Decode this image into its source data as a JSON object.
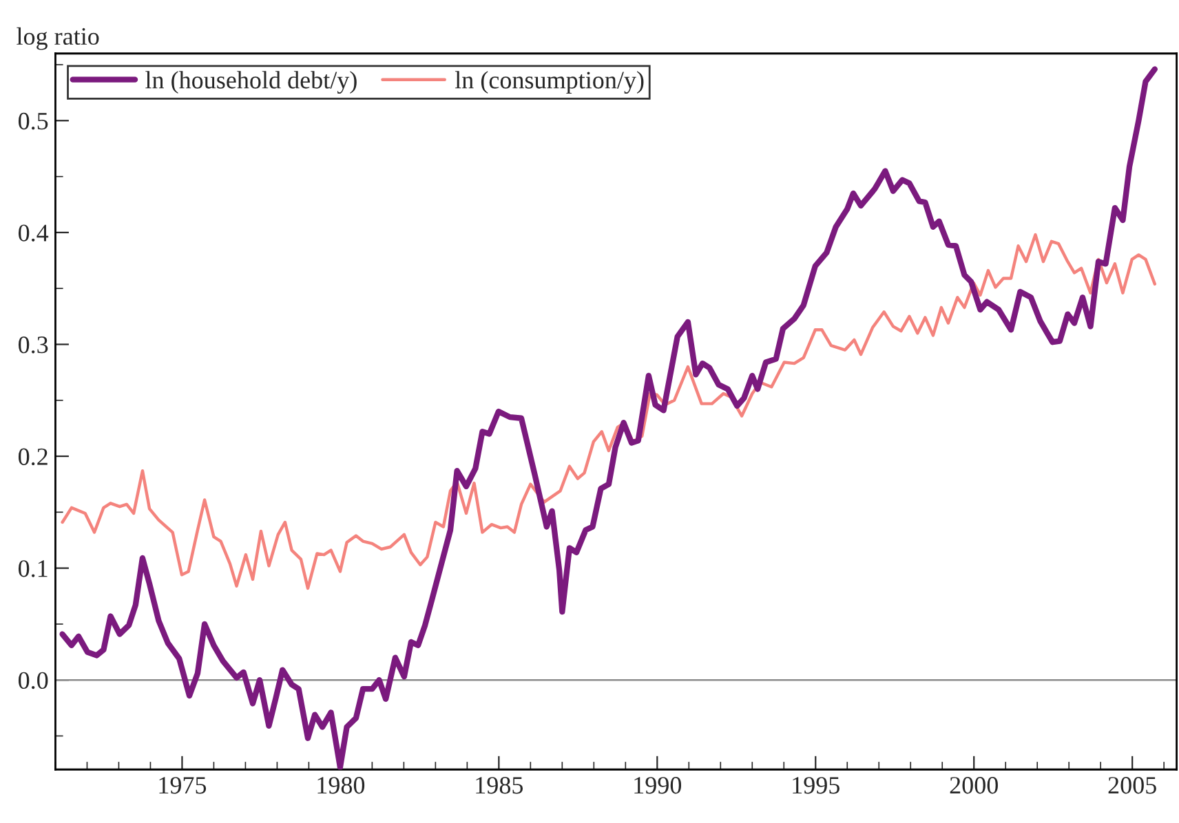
{
  "chart_data": {
    "type": "line",
    "ylabel": "log ratio",
    "xlim": [
      1971,
      2006.4
    ],
    "xticks": [
      {
        "value": 1971,
        "label": null
      },
      {
        "value": 1972,
        "label": null
      },
      {
        "value": 1973,
        "label": null
      },
      {
        "value": 1974,
        "label": null
      },
      1975,
      {
        "value": 1976,
        "label": null
      },
      {
        "value": 1977,
        "label": null
      },
      {
        "value": 1978,
        "label": null
      },
      {
        "value": 1979,
        "label": null
      },
      1980,
      {
        "value": 1981,
        "label": null
      },
      {
        "value": 1982,
        "label": null
      },
      {
        "value": 1983,
        "label": null
      },
      {
        "value": 1984,
        "label": null
      },
      1985,
      {
        "value": 1986,
        "label": null
      },
      {
        "value": 1987,
        "label": null
      },
      {
        "value": 1988,
        "label": null
      },
      {
        "value": 1989,
        "label": null
      },
      1990,
      {
        "value": 1991,
        "label": null
      },
      {
        "value": 1992,
        "label": null
      },
      {
        "value": 1993,
        "label": null
      },
      {
        "value": 1994,
        "label": null
      },
      1995,
      {
        "value": 1996,
        "label": null
      },
      {
        "value": 1997,
        "label": null
      },
      {
        "value": 1998,
        "label": null
      },
      {
        "value": 1999,
        "label": null
      },
      2000,
      {
        "value": 2001,
        "label": null
      },
      {
        "value": 2002,
        "label": null
      },
      {
        "value": 2003,
        "label": null
      },
      {
        "value": 2004,
        "label": null
      },
      2005,
      {
        "value": 2006,
        "label": null
      }
    ],
    "ylim": [
      -0.08,
      0.56
    ],
    "yticks": [
      {
        "value": -0.05,
        "label": null
      },
      {
        "value": 0,
        "label": "0.0"
      },
      {
        "value": 0.05,
        "label": null
      },
      0.1,
      {
        "value": 0.15,
        "label": null
      },
      0.2,
      {
        "value": 0.25,
        "label": null
      },
      0.3,
      {
        "value": 0.35,
        "label": null
      },
      0.4,
      {
        "value": 0.45,
        "label": null
      },
      0.5,
      {
        "value": 0.55,
        "label": null
      }
    ],
    "ref_lines": [
      {
        "axis": "y",
        "value": 0,
        "color": "#8c8c8c"
      }
    ],
    "grid": false,
    "legend": "top left",
    "line_style": "solid",
    "marker": "none",
    "series": [
      {
        "name": "ln (household debt/y)",
        "color": "#7b1a7e",
        "x": [
          1971.22,
          1971.51,
          1971.73,
          1972.01,
          1972.3,
          1972.52,
          1972.74,
          1973.03,
          1973.32,
          1973.53,
          1973.75,
          1973.97,
          1974.26,
          1974.55,
          1974.91,
          1975.23,
          1975.49,
          1975.71,
          1976.0,
          1976.29,
          1976.72,
          1976.94,
          1977.23,
          1977.45,
          1977.74,
          1977.96,
          1978.17,
          1978.46,
          1978.68,
          1978.97,
          1979.19,
          1979.43,
          1979.7,
          1979.99,
          1980.2,
          1980.49,
          1980.71,
          1981.0,
          1981.22,
          1981.43,
          1981.73,
          1982.01,
          1982.23,
          1982.45,
          1982.67,
          1982.88,
          1983.17,
          1983.47,
          1983.68,
          1983.97,
          1984.26,
          1984.48,
          1984.7,
          1984.99,
          1985.35,
          1985.71,
          1986.14,
          1986.51,
          1986.68,
          1986.91,
          1987.0,
          1987.23,
          1987.45,
          1987.74,
          1987.96,
          1988.22,
          1988.47,
          1988.68,
          1988.94,
          1989.19,
          1989.4,
          1989.73,
          1989.94,
          1990.2,
          1990.64,
          1990.97,
          1991.22,
          1991.43,
          1991.65,
          1991.94,
          1992.23,
          1992.52,
          1992.74,
          1993.0,
          1993.17,
          1993.43,
          1993.75,
          1993.97,
          1994.33,
          1994.62,
          1994.99,
          1995.35,
          1995.64,
          1996.0,
          1996.19,
          1996.43,
          1996.87,
          1997.2,
          1997.45,
          1997.74,
          1997.96,
          1998.27,
          1998.46,
          1998.71,
          1998.9,
          1999.19,
          1999.43,
          1999.7,
          1999.91,
          2000.2,
          2000.41,
          2000.78,
          2001.17,
          2001.46,
          2001.8,
          2002.09,
          2002.48,
          2002.71,
          2002.96,
          2003.17,
          2003.43,
          2003.68,
          2003.93,
          2004.16,
          2004.45,
          2004.7,
          2004.91,
          2005.2,
          2005.42,
          2005.71
        ],
        "values": [
          0.041,
          0.031,
          0.039,
          0.025,
          0.022,
          0.027,
          0.057,
          0.041,
          0.049,
          0.067,
          0.109,
          0.086,
          0.053,
          0.033,
          0.019,
          -0.014,
          0.006,
          0.05,
          0.031,
          0.017,
          0.002,
          0.007,
          -0.021,
          0.0,
          -0.041,
          -0.016,
          0.009,
          -0.004,
          -0.008,
          -0.052,
          -0.031,
          -0.042,
          -0.029,
          -0.078,
          -0.042,
          -0.034,
          -0.008,
          -0.008,
          0.0,
          -0.017,
          0.02,
          0.003,
          0.034,
          0.031,
          0.049,
          0.071,
          0.102,
          0.134,
          0.187,
          0.173,
          0.189,
          0.222,
          0.22,
          0.24,
          0.235,
          0.234,
          0.183,
          0.137,
          0.151,
          0.098,
          0.061,
          0.118,
          0.114,
          0.134,
          0.137,
          0.171,
          0.175,
          0.208,
          0.23,
          0.212,
          0.214,
          0.272,
          0.246,
          0.241,
          0.307,
          0.32,
          0.273,
          0.283,
          0.279,
          0.264,
          0.26,
          0.245,
          0.252,
          0.272,
          0.26,
          0.284,
          0.287,
          0.314,
          0.323,
          0.335,
          0.37,
          0.382,
          0.405,
          0.421,
          0.435,
          0.424,
          0.439,
          0.455,
          0.437,
          0.447,
          0.444,
          0.428,
          0.427,
          0.405,
          0.41,
          0.389,
          0.388,
          0.362,
          0.356,
          0.331,
          0.338,
          0.331,
          0.313,
          0.347,
          0.342,
          0.321,
          0.302,
          0.303,
          0.327,
          0.319,
          0.342,
          0.316,
          0.374,
          0.372,
          0.422,
          0.411,
          0.459,
          0.5,
          0.535,
          0.546
        ]
      },
      {
        "name": "ln (consumption/y)",
        "color": "#f4837d",
        "x": [
          1971.22,
          1971.51,
          1971.94,
          1972.23,
          1972.52,
          1972.74,
          1973.03,
          1973.25,
          1973.47,
          1973.75,
          1973.97,
          1974.26,
          1974.7,
          1974.99,
          1975.2,
          1975.49,
          1975.71,
          1976.0,
          1976.22,
          1976.51,
          1976.72,
          1977.01,
          1977.23,
          1977.49,
          1977.74,
          1978.03,
          1978.25,
          1978.46,
          1978.75,
          1978.97,
          1979.26,
          1979.48,
          1979.7,
          1979.99,
          1980.2,
          1980.49,
          1980.71,
          1981.0,
          1981.29,
          1981.58,
          1982.01,
          1982.23,
          1982.52,
          1982.74,
          1983.0,
          1983.25,
          1983.47,
          1983.68,
          1983.97,
          1984.22,
          1984.48,
          1984.77,
          1985.06,
          1985.27,
          1985.49,
          1985.71,
          1986.0,
          1986.43,
          1986.94,
          1987.23,
          1987.49,
          1987.7,
          1987.99,
          1988.25,
          1988.47,
          1988.75,
          1988.97,
          1989.23,
          1989.52,
          1989.77,
          1989.99,
          1990.25,
          1990.54,
          1990.97,
          1991.4,
          1991.73,
          1992.09,
          1992.33,
          1992.67,
          1993.0,
          1993.25,
          1993.61,
          1994.01,
          1994.33,
          1994.62,
          1994.99,
          1995.2,
          1995.49,
          1995.93,
          1996.22,
          1996.43,
          1996.8,
          1997.16,
          1997.45,
          1997.7,
          1997.96,
          1998.22,
          1998.46,
          1998.71,
          1998.97,
          1999.19,
          1999.48,
          1999.7,
          1999.99,
          2000.2,
          2000.45,
          2000.68,
          2000.93,
          2001.17,
          2001.4,
          2001.65,
          2001.94,
          2002.19,
          2002.45,
          2002.67,
          2002.96,
          2003.17,
          2003.39,
          2003.68,
          2003.93,
          2004.19,
          2004.45,
          2004.7,
          2004.99,
          2005.2,
          2005.42,
          2005.71
        ],
        "values": [
          0.141,
          0.154,
          0.149,
          0.132,
          0.154,
          0.158,
          0.155,
          0.157,
          0.149,
          0.187,
          0.153,
          0.143,
          0.132,
          0.094,
          0.097,
          0.134,
          0.161,
          0.128,
          0.124,
          0.104,
          0.084,
          0.112,
          0.09,
          0.133,
          0.102,
          0.13,
          0.141,
          0.116,
          0.108,
          0.082,
          0.113,
          0.112,
          0.116,
          0.097,
          0.123,
          0.129,
          0.124,
          0.122,
          0.117,
          0.119,
          0.13,
          0.114,
          0.103,
          0.11,
          0.141,
          0.137,
          0.169,
          0.177,
          0.149,
          0.176,
          0.132,
          0.139,
          0.136,
          0.137,
          0.132,
          0.157,
          0.175,
          0.159,
          0.169,
          0.191,
          0.18,
          0.185,
          0.213,
          0.222,
          0.205,
          0.226,
          0.23,
          0.213,
          0.218,
          0.256,
          0.255,
          0.246,
          0.25,
          0.28,
          0.247,
          0.247,
          0.256,
          0.253,
          0.236,
          0.256,
          0.266,
          0.262,
          0.284,
          0.283,
          0.288,
          0.313,
          0.313,
          0.299,
          0.295,
          0.304,
          0.291,
          0.315,
          0.329,
          0.316,
          0.312,
          0.325,
          0.31,
          0.324,
          0.308,
          0.333,
          0.319,
          0.342,
          0.333,
          0.355,
          0.344,
          0.366,
          0.351,
          0.359,
          0.359,
          0.388,
          0.374,
          0.398,
          0.374,
          0.392,
          0.39,
          0.374,
          0.364,
          0.368,
          0.346,
          0.376,
          0.355,
          0.372,
          0.346,
          0.376,
          0.38,
          0.376,
          0.354
        ]
      }
    ]
  }
}
